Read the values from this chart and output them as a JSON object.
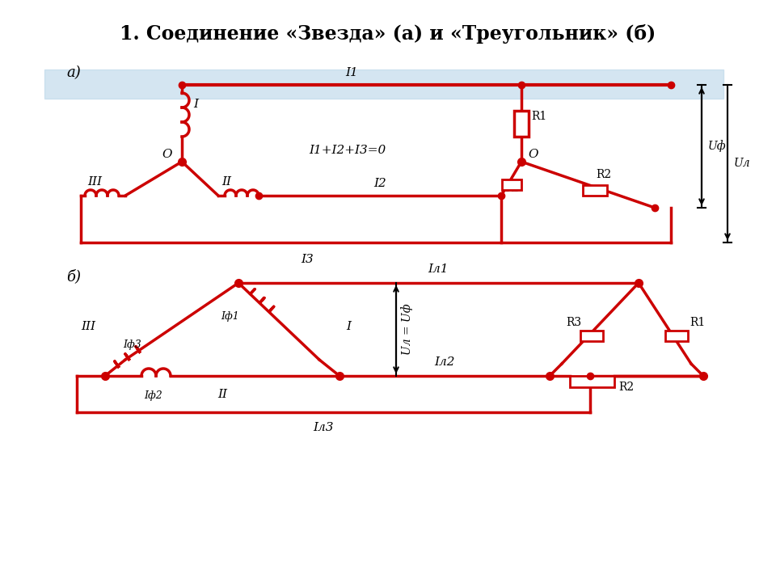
{
  "title": "1. Соединение «Звезда» (а) и «Треугольник» (б)",
  "bg_color": "#ffffff",
  "circuit_color": "#cc0000",
  "line_width": 2.5,
  "text_color": "#000000",
  "band_color": "#b8d4e8",
  "band_alpha": 0.6,
  "label_a": "а)",
  "label_b": "б)",
  "label_I": "I",
  "label_II": "II",
  "label_III": "III",
  "label_O": "O",
  "label_R1": "R1",
  "label_R2": "R2",
  "label_R3": "R3",
  "label_I1": "I1",
  "label_I2": "I2",
  "label_I3": "I3",
  "label_sum": "I1+I2+I3=0",
  "label_Uf": "Uф",
  "label_Ul": "Uл",
  "label_Il1": "Iл1",
  "label_Il2": "Iл2",
  "label_Il3": "Iл3",
  "label_If1": "Iф1",
  "label_If2": "Iф2",
  "label_If3": "Iф3",
  "label_UlUf": "Uл = Uф"
}
